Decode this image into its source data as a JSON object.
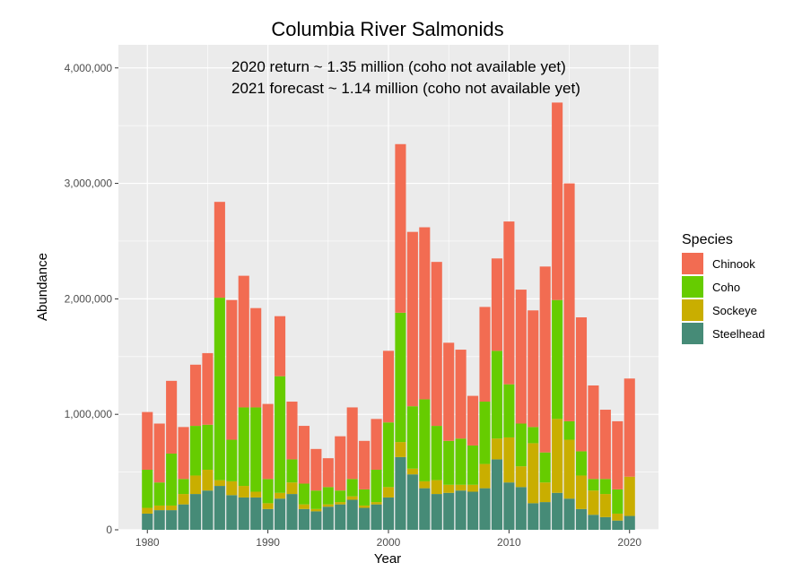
{
  "chart_data": {
    "type": "bar",
    "stacked": true,
    "title": "Columbia River Salmonids",
    "annotations": [
      "2020 return ~ 1.35 million (coho not available yet)",
      "2021 forecast ~ 1.14 million (coho not available yet)"
    ],
    "xlabel": "Year",
    "ylabel": "Abundance",
    "xlim": [
      1977.6,
      2022.4
    ],
    "ylim": [
      0,
      4200000
    ],
    "xticks": [
      1980,
      1990,
      2000,
      2010,
      2020
    ],
    "xtick_labels": [
      "1980",
      "1990",
      "2000",
      "2010",
      "2020"
    ],
    "yticks": [
      0,
      1000000,
      2000000,
      3000000,
      4000000
    ],
    "ytick_labels": [
      "0",
      "1,000,000",
      "2,000,000",
      "3,000,000",
      "4,000,000"
    ],
    "grid": true,
    "legend": {
      "title": "Species",
      "position": "right"
    },
    "x": [
      1980,
      1981,
      1982,
      1983,
      1984,
      1985,
      1986,
      1987,
      1988,
      1989,
      1990,
      1991,
      1992,
      1993,
      1994,
      1995,
      1996,
      1997,
      1998,
      1999,
      2000,
      2001,
      2002,
      2003,
      2004,
      2005,
      2006,
      2007,
      2008,
      2009,
      2010,
      2011,
      2012,
      2013,
      2014,
      2015,
      2016,
      2017,
      2018,
      2019,
      2020
    ],
    "series": [
      {
        "name": "Steelhead",
        "color": "#468b77",
        "values": [
          140000,
          170000,
          170000,
          220000,
          310000,
          340000,
          380000,
          300000,
          280000,
          280000,
          180000,
          270000,
          310000,
          180000,
          160000,
          200000,
          220000,
          260000,
          190000,
          220000,
          280000,
          630000,
          480000,
          360000,
          310000,
          320000,
          340000,
          330000,
          360000,
          610000,
          410000,
          370000,
          230000,
          240000,
          320000,
          270000,
          180000,
          130000,
          110000,
          80000,
          120000
        ]
      },
      {
        "name": "Sockeye",
        "color": "#c9ae00",
        "values": [
          50000,
          40000,
          40000,
          90000,
          160000,
          180000,
          50000,
          120000,
          100000,
          50000,
          50000,
          50000,
          100000,
          40000,
          20000,
          20000,
          20000,
          30000,
          20000,
          20000,
          90000,
          130000,
          50000,
          60000,
          120000,
          70000,
          50000,
          60000,
          210000,
          180000,
          390000,
          180000,
          520000,
          170000,
          640000,
          510000,
          290000,
          210000,
          200000,
          60000,
          340000
        ]
      },
      {
        "name": "Coho",
        "color": "#66cc00",
        "values": [
          330000,
          200000,
          450000,
          130000,
          430000,
          390000,
          1580000,
          360000,
          680000,
          730000,
          210000,
          1010000,
          200000,
          180000,
          160000,
          150000,
          100000,
          150000,
          140000,
          280000,
          560000,
          1120000,
          540000,
          710000,
          470000,
          380000,
          400000,
          340000,
          540000,
          760000,
          460000,
          370000,
          140000,
          260000,
          1030000,
          160000,
          210000,
          100000,
          130000,
          210000,
          0
        ]
      },
      {
        "name": "Chinook",
        "color": "#f26c52",
        "values": [
          500000,
          510000,
          630000,
          450000,
          530000,
          620000,
          830000,
          1210000,
          1140000,
          860000,
          650000,
          520000,
          500000,
          500000,
          360000,
          250000,
          470000,
          620000,
          420000,
          440000,
          620000,
          1460000,
          1510000,
          1490000,
          1420000,
          850000,
          770000,
          430000,
          820000,
          800000,
          1410000,
          1160000,
          1010000,
          1610000,
          1710000,
          2060000,
          1160000,
          810000,
          600000,
          590000,
          850000
        ]
      }
    ]
  }
}
